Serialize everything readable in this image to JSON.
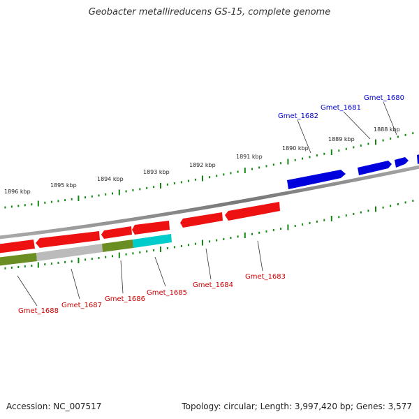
{
  "title": "Geobacter metallireducens GS-15, complete genome",
  "footer": {
    "accession": "Accession: NC_007517",
    "topology": "Topology: circular; Length: 3,997,420 bp; Genes: 3,577"
  },
  "colors": {
    "forward": "#0000dd",
    "reverse": "#ee1111",
    "label_forward": "#0000cc",
    "label_reverse": "#cc0000",
    "ticks": "#118811",
    "backbone": "#888888",
    "cat_olive": "#6b8e23",
    "cat_gray": "#bbbbbb",
    "cat_cyan": "#00cccc"
  },
  "kbp_labels": [
    "1888 kbp",
    "1889 kbp",
    "1890 kbp",
    "1891 kbp",
    "1892 kbp",
    "1893 kbp",
    "1894 kbp",
    "1895 kbp",
    "1896 kbp"
  ],
  "genes_forward": [
    "Gmet_1680",
    "Gmet_1681",
    "Gmet_1682"
  ],
  "genes_reverse": [
    "Gmet_1683",
    "Gmet_1684",
    "Gmet_1685",
    "Gmet_1686",
    "Gmet_1687",
    "Gmet_1688"
  ]
}
